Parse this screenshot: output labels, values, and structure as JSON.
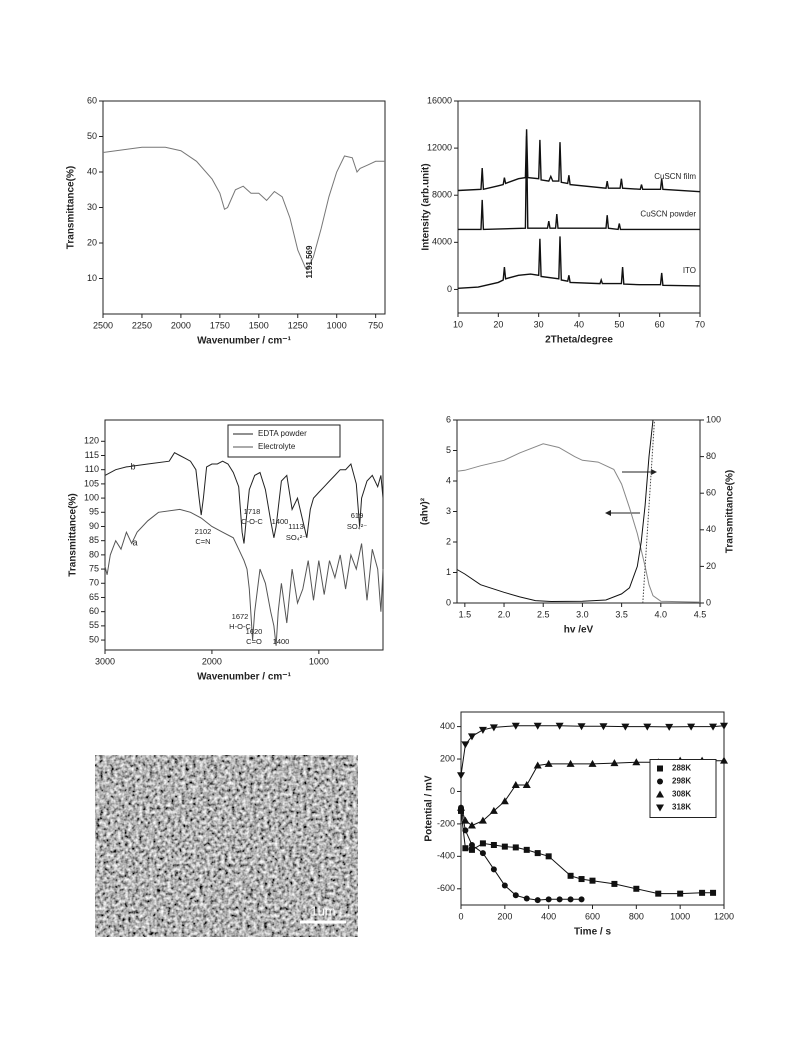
{
  "chart_data": [
    {
      "type": "line",
      "xlabel": "Wavenumber / cm⁻¹",
      "ylabel": "Transmittance(%)",
      "xlim": [
        2500,
        690
      ],
      "xticks": [
        2500,
        2250,
        2000,
        1750,
        1500,
        1250,
        1000,
        750
      ],
      "ylim": [
        0,
        60
      ],
      "yticks": [
        10,
        20,
        30,
        40,
        50,
        60
      ],
      "annotations": [
        "1191.569"
      ],
      "x": [
        2500,
        2250,
        2100,
        2000,
        1900,
        1800,
        1750,
        1720,
        1700,
        1650,
        1600,
        1550,
        1500,
        1450,
        1400,
        1350,
        1300,
        1250,
        1200,
        1191,
        1150,
        1100,
        1050,
        1000,
        950,
        900,
        870,
        850,
        800,
        750,
        690
      ],
      "series": [
        {
          "color": "#777777",
          "values": [
            45.5,
            47,
            47,
            46,
            43,
            38,
            34,
            29.5,
            30,
            35,
            36,
            34,
            34,
            32,
            34.5,
            33,
            27,
            18,
            13,
            12.5,
            16,
            24,
            33,
            40,
            44.5,
            44,
            40,
            41,
            42,
            43,
            43
          ]
        }
      ]
    },
    {
      "type": "line",
      "xlabel": "2Theta/degree",
      "ylabel": "Intensity (arb.unit)",
      "xlim": [
        10,
        70
      ],
      "xticks": [
        10,
        20,
        30,
        40,
        50,
        60,
        70
      ],
      "ylim": [
        -2000,
        16000
      ],
      "yticks": [
        0,
        4000,
        8000,
        12000,
        16000
      ],
      "legend": "inline",
      "series": [
        {
          "name": "CuSCN film",
          "color": "#111111",
          "x": [
            10,
            15.7,
            16,
            16.3,
            20,
            21.2,
            21.5,
            21.8,
            25,
            26.7,
            27,
            27.3,
            30,
            30.3,
            30.6,
            32.5,
            33,
            33.5,
            35,
            35.3,
            35.6,
            37.2,
            37.5,
            37.8,
            46.7,
            47,
            47.3,
            50.2,
            50.5,
            50.8,
            55.2,
            55.5,
            55.8,
            60.2,
            60.5,
            60.8,
            70
          ],
          "values": [
            8400,
            8500,
            10300,
            8500,
            8800,
            8900,
            9500,
            9000,
            9400,
            9500,
            13600,
            9500,
            9400,
            12700,
            9300,
            9200,
            9600,
            9200,
            9200,
            12500,
            9100,
            9000,
            9700,
            8900,
            8600,
            9200,
            8600,
            8600,
            9400,
            8600,
            8500,
            8900,
            8500,
            8500,
            9400,
            8500,
            8300
          ]
        },
        {
          "name": "CuSCN powder",
          "color": "#111111",
          "x": [
            10,
            15.7,
            16,
            16.3,
            26.7,
            27,
            27.3,
            32.2,
            32.5,
            32.8,
            34.2,
            34.5,
            34.8,
            46.7,
            47,
            47.3,
            49.7,
            50,
            50.3,
            70
          ],
          "values": [
            5100,
            5100,
            7600,
            5100,
            5200,
            13000,
            5200,
            5200,
            5800,
            5200,
            5200,
            6400,
            5200,
            5200,
            6300,
            5200,
            5100,
            5600,
            5100,
            5100
          ]
        },
        {
          "name": "ITO",
          "color": "#111111",
          "x": [
            10,
            15,
            20,
            21.2,
            21.5,
            21.8,
            25,
            28,
            30,
            30.3,
            30.6,
            35,
            35.3,
            35.6,
            37.2,
            37.5,
            37.8,
            45.2,
            45.5,
            45.8,
            50.5,
            50.8,
            51.1,
            55,
            60.2,
            60.5,
            60.8,
            70
          ],
          "values": [
            100,
            200,
            600,
            800,
            1900,
            900,
            1200,
            1300,
            1200,
            4300,
            1100,
            900,
            4500,
            800,
            700,
            1200,
            600,
            500,
            800,
            500,
            500,
            1900,
            450,
            400,
            400,
            1400,
            350,
            300
          ]
        }
      ]
    },
    {
      "type": "line",
      "xlabel": "Wavenumber / cm⁻¹",
      "ylabel": "Transmittance(%)",
      "xlim": [
        3000,
        400
      ],
      "xticks": [
        3000,
        2000,
        1000
      ],
      "ylim": [
        46.5,
        127.5
      ],
      "yticks": [
        50,
        55,
        60,
        65,
        70,
        75,
        80,
        85,
        90,
        95,
        100,
        105,
        110,
        115,
        120
      ],
      "legend": "upper center",
      "annotations": [
        "b",
        "a",
        "2102",
        "C=N",
        "1718",
        "C-O-C",
        "1400",
        "1113",
        "SO₄²⁻",
        "619",
        "SO₄²⁻",
        "1672",
        "H-O-C",
        "1620",
        "C=O",
        "1400"
      ],
      "series": [
        {
          "name": "EDTA powder",
          "color": "#222222",
          "x": [
            3000,
            2900,
            2800,
            2600,
            2400,
            2350,
            2300,
            2250,
            2200,
            2150,
            2120,
            2100,
            2080,
            2050,
            2000,
            1950,
            1900,
            1850,
            1800,
            1750,
            1718,
            1700,
            1680,
            1650,
            1600,
            1550,
            1500,
            1450,
            1420,
            1400,
            1350,
            1300,
            1250,
            1200,
            1150,
            1113,
            1080,
            1050,
            1000,
            950,
            900,
            850,
            800,
            750,
            700,
            650,
            619,
            600,
            550,
            500,
            450,
            420,
            400
          ],
          "values": [
            108,
            110,
            111,
            112,
            113,
            116,
            115,
            114,
            113,
            110,
            100,
            94,
            100,
            111,
            112,
            112,
            113,
            112,
            109,
            104,
            88,
            84,
            92,
            103,
            108,
            109,
            103,
            92,
            86,
            90,
            106,
            108,
            96,
            100,
            92,
            86,
            96,
            100,
            102,
            104,
            106,
            108,
            110,
            110,
            112,
            105,
            90,
            100,
            106,
            108,
            104,
            108,
            100
          ]
        },
        {
          "name": "Electrolyte",
          "color": "#555555",
          "x": [
            3000,
            2980,
            2950,
            2900,
            2850,
            2800,
            2750,
            2700,
            2600,
            2500,
            2300,
            2200,
            2100,
            2000,
            1900,
            1800,
            1750,
            1700,
            1672,
            1650,
            1620,
            1600,
            1550,
            1500,
            1450,
            1420,
            1400,
            1380,
            1350,
            1300,
            1250,
            1200,
            1150,
            1100,
            1050,
            1000,
            950,
            900,
            850,
            800,
            750,
            700,
            650,
            600,
            550,
            500,
            450,
            420,
            400
          ],
          "values": [
            76,
            73,
            80,
            85,
            82,
            88,
            84,
            88,
            92,
            95,
            96,
            95,
            93,
            90,
            88,
            86,
            82,
            78,
            75,
            68,
            50,
            60,
            75,
            70,
            60,
            55,
            48,
            60,
            70,
            56,
            75,
            63,
            68,
            78,
            64,
            78,
            66,
            78,
            72,
            80,
            68,
            80,
            75,
            84,
            64,
            82,
            75,
            60,
            75
          ]
        }
      ]
    },
    {
      "type": "line",
      "xlabel": "hv /eV",
      "ylabel": "(ahv)²",
      "y2label": "Transmittance(%)",
      "xlim": [
        1.4,
        4.5
      ],
      "xticks": [
        1.5,
        {
          "value": 2,
          "label": "2.0"
        },
        2.5,
        {
          "value": 3,
          "label": "3.0"
        },
        3.5,
        {
          "value": 4,
          "label": "4.0"
        },
        4.5
      ],
      "ylim": [
        0,
        6
      ],
      "yticks": [
        0,
        1,
        2,
        3,
        4,
        5,
        6
      ],
      "y2lim": [
        0,
        100
      ],
      "y2ticks": [
        0,
        20,
        40,
        60,
        80,
        100
      ],
      "series": [
        {
          "color": "#888888",
          "axis": "y2",
          "x": [
            1.4,
            1.5,
            1.7,
            2.0,
            2.2,
            2.5,
            2.7,
            2.9,
            3.0,
            3.2,
            3.4,
            3.5,
            3.6,
            3.7,
            3.8,
            3.85,
            3.9,
            4.0,
            4.5
          ],
          "values": [
            72,
            72.5,
            75,
            78,
            82,
            87,
            85,
            80,
            78,
            77,
            73,
            65,
            52,
            38,
            20,
            10,
            4,
            1,
            0.5
          ]
        },
        {
          "color": "#111111",
          "x": [
            1.4,
            1.5,
            1.7,
            2.0,
            2.2,
            2.4,
            2.6,
            3.0,
            3.3,
            3.5,
            3.6,
            3.7,
            3.75,
            3.8,
            3.85,
            3.9
          ],
          "values": [
            1.1,
            0.95,
            0.6,
            0.35,
            0.2,
            0.08,
            0.05,
            0.06,
            0.1,
            0.3,
            0.5,
            1.2,
            2.0,
            3.2,
            4.8,
            6
          ]
        },
        {
          "color": "#444444",
          "dash": true,
          "x": [
            3.77,
            3.92
          ],
          "values": [
            0,
            6
          ]
        }
      ]
    },
    {
      "type": "line",
      "xlabel": "Time / s",
      "ylabel": "Potential / mV",
      "xlim": [
        0,
        1200
      ],
      "xticks": [
        0,
        200,
        400,
        600,
        800,
        1000,
        1200
      ],
      "ylim": [
        -700,
        490
      ],
      "yticks": [
        -600,
        -400,
        -200,
        0,
        200,
        400
      ],
      "legend": "center right",
      "series": [
        {
          "name": "288K",
          "color": "#111111",
          "marker": "square",
          "x": [
            0,
            20,
            50,
            100,
            150,
            200,
            250,
            300,
            350,
            400,
            500,
            550,
            600,
            700,
            800,
            900,
            1000,
            1100,
            1150
          ],
          "values": [
            -120,
            -350,
            -360,
            -320,
            -330,
            -340,
            -345,
            -360,
            -380,
            -400,
            -520,
            -540,
            -550,
            -570,
            -600,
            -630,
            -630,
            -625,
            -625
          ]
        },
        {
          "name": "298K",
          "color": "#111111",
          "marker": "circle",
          "x": [
            0,
            20,
            50,
            100,
            150,
            200,
            250,
            300,
            350,
            400,
            450,
            500,
            550
          ],
          "values": [
            -100,
            -240,
            -330,
            -380,
            -480,
            -580,
            -640,
            -660,
            -670,
            -665,
            -665,
            -665,
            -665
          ]
        },
        {
          "name": "308K",
          "color": "#111111",
          "marker": "triangle-up",
          "x": [
            0,
            20,
            50,
            100,
            150,
            200,
            250,
            300,
            350,
            400,
            500,
            600,
            700,
            800,
            900,
            1000,
            1100,
            1200
          ],
          "values": [
            -100,
            -180,
            -210,
            -180,
            -120,
            -60,
            40,
            40,
            160,
            170,
            170,
            170,
            175,
            180,
            180,
            190,
            190,
            190
          ]
        },
        {
          "name": "318K",
          "color": "#111111",
          "marker": "triangle-down",
          "x": [
            0,
            20,
            50,
            100,
            150,
            250,
            350,
            450,
            550,
            650,
            750,
            850,
            950,
            1050,
            1150,
            1200
          ],
          "values": [
            100,
            290,
            340,
            380,
            395,
            405,
            405,
            405,
            402,
            402,
            400,
            400,
            398,
            400,
            400,
            405
          ]
        }
      ]
    }
  ],
  "image": {
    "scale_label": "1um"
  }
}
